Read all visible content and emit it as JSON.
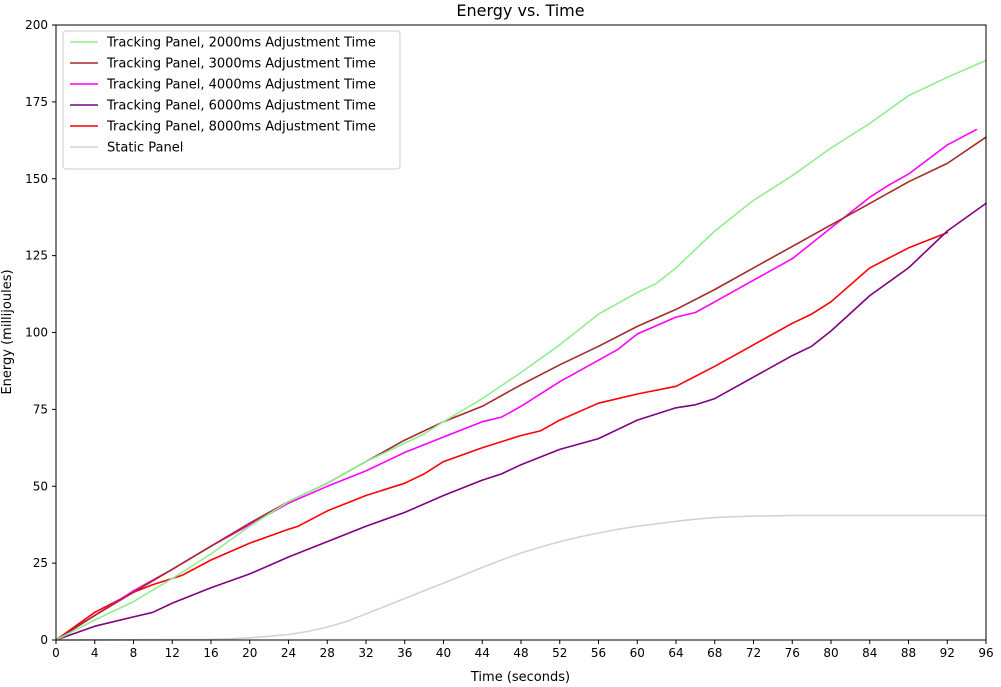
{
  "chart_data": {
    "type": "line",
    "title": "Energy vs. Time",
    "xlabel": "Time (seconds)",
    "ylabel": "Energy (millijoules)",
    "xlim": [
      0,
      96
    ],
    "ylim": [
      0,
      200
    ],
    "xticks": [
      0,
      4,
      8,
      12,
      16,
      20,
      24,
      28,
      32,
      36,
      40,
      44,
      48,
      52,
      56,
      60,
      64,
      68,
      72,
      76,
      80,
      84,
      88,
      92,
      96
    ],
    "yticks": [
      0,
      25,
      50,
      75,
      100,
      125,
      150,
      175,
      200
    ],
    "grid": false,
    "legend_position": "upper-left",
    "series": [
      {
        "name": "Tracking Panel, 2000ms Adjustment Time",
        "color": "#90ee90",
        "x": [
          0,
          4,
          8,
          12,
          16,
          20,
          24,
          28,
          32,
          36,
          38,
          40,
          44,
          48,
          52,
          56,
          60,
          62,
          64,
          68,
          72,
          76,
          80,
          84,
          88,
          92,
          96
        ],
        "y": [
          0,
          6.5,
          12.5,
          20,
          28,
          37,
          45,
          51,
          58,
          64,
          67,
          71,
          78.5,
          87,
          96,
          106,
          113,
          116,
          121,
          133,
          143,
          151,
          160,
          168,
          177,
          183,
          188.5
        ]
      },
      {
        "name": "Tracking Panel, 3000ms Adjustment Time",
        "color": "#a52a2a",
        "x": [
          0,
          4,
          8,
          12,
          16,
          20,
          24,
          28,
          32,
          36,
          40,
          44,
          48,
          52,
          56,
          60,
          64,
          68,
          72,
          76,
          80,
          84,
          88,
          92,
          96
        ],
        "y": [
          0,
          8,
          15.5,
          23,
          30.5,
          38,
          45,
          51,
          58,
          65,
          71,
          76,
          83,
          89.5,
          95.5,
          102,
          107.5,
          114,
          121,
          128,
          135,
          142,
          149,
          155,
          163.5
        ]
      },
      {
        "name": "Tracking Panel, 4000ms Adjustment Time",
        "color": "#ff00ff",
        "x": [
          0,
          4,
          8,
          12,
          16,
          20,
          24,
          28,
          32,
          36,
          40,
          44,
          46,
          48,
          52,
          56,
          58,
          60,
          64,
          66,
          68,
          72,
          76,
          80,
          84,
          86,
          88,
          92,
          95
        ],
        "y": [
          0,
          8,
          16,
          23,
          30.5,
          37.5,
          44.5,
          50,
          55,
          61,
          66,
          71,
          72.5,
          76,
          84,
          91,
          94.5,
          99.5,
          105,
          106.5,
          110,
          117,
          124,
          134,
          144,
          148,
          151.5,
          161,
          166
        ]
      },
      {
        "name": "Tracking Panel, 6000ms Adjustment Time",
        "color": "#800080",
        "x": [
          0,
          4,
          8,
          10,
          12,
          16,
          20,
          24,
          28,
          32,
          36,
          40,
          44,
          46,
          48,
          52,
          56,
          60,
          64,
          66,
          68,
          72,
          76,
          78,
          80,
          84,
          88,
          92,
          96
        ],
        "y": [
          0,
          4.5,
          7.5,
          9,
          12,
          17,
          21.5,
          27,
          32,
          37,
          41.5,
          47,
          52,
          54,
          57,
          62,
          65.5,
          71.5,
          75.5,
          76.5,
          78.5,
          85.5,
          92.5,
          95.5,
          100.5,
          112,
          121,
          133,
          142
        ]
      },
      {
        "name": "Tracking Panel, 8000ms Adjustment Time",
        "color": "#ff0000",
        "x": [
          0,
          4,
          8,
          10,
          12,
          13,
          16,
          20,
          24,
          25,
          28,
          32,
          36,
          38,
          40,
          44,
          48,
          50,
          52,
          56,
          60,
          64,
          68,
          72,
          76,
          78,
          80,
          84,
          88,
          92
        ],
        "y": [
          0,
          9,
          15.5,
          18,
          20,
          21,
          26,
          31.5,
          36,
          37,
          42,
          47,
          51,
          54,
          58,
          62.5,
          66.5,
          68,
          71.5,
          77,
          80,
          82.5,
          89,
          96,
          103,
          106,
          110,
          121,
          127.5,
          132.5
        ]
      },
      {
        "name": "Static Panel",
        "color": "#d3d3d3",
        "x": [
          0,
          16,
          18,
          20,
          22,
          24,
          26,
          28,
          30,
          32,
          34,
          36,
          38,
          40,
          42,
          44,
          46,
          48,
          50,
          52,
          54,
          56,
          58,
          60,
          62,
          64,
          66,
          68,
          70,
          72,
          74,
          76,
          80,
          84,
          88,
          92,
          96
        ],
        "y": [
          0,
          0.2,
          0.4,
          0.7,
          1.2,
          1.8,
          2.8,
          4.2,
          6,
          8.5,
          11,
          13.5,
          16,
          18.5,
          21,
          23.6,
          26,
          28.3,
          30.2,
          32,
          33.5,
          34.8,
          36,
          37,
          37.8,
          38.6,
          39.3,
          39.8,
          40.1,
          40.3,
          40.4,
          40.5,
          40.5,
          40.5,
          40.5,
          40.5,
          40.5
        ]
      }
    ]
  }
}
